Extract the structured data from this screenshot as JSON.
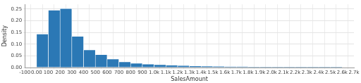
{
  "chart_data": {
    "type": "histogram",
    "x_label": "SalesAmount",
    "y_label": "Density",
    "bins": [
      0,
      100,
      200,
      300,
      400,
      500,
      600,
      700,
      800,
      900,
      1000,
      1100,
      1200,
      1300,
      1400,
      1500,
      1600,
      1700,
      1800,
      1900,
      2000,
      2100,
      2200,
      2300,
      2400,
      2500,
      2600
    ],
    "values": [
      0.143,
      0.245,
      0.252,
      0.133,
      0.075,
      0.055,
      0.036,
      0.024,
      0.018,
      0.014,
      0.012,
      0.01,
      0.008,
      0.007,
      0.006,
      0.005,
      0.004,
      0.004,
      0.003,
      0.003,
      0.002,
      0.002,
      0.002,
      0.002,
      0.001,
      0.001
    ],
    "color": "#2b78b5",
    "xlim": [
      -100,
      2700
    ],
    "xticks": [
      -100,
      {
        "value": 0,
        "label": "0.00"
      },
      100,
      200,
      300,
      400,
      500,
      600,
      700,
      800,
      900,
      {
        "value": 1000,
        "label": "1.0k"
      },
      {
        "value": 1100,
        "label": "1.1k"
      },
      {
        "value": 1200,
        "label": "1.2k"
      },
      {
        "value": 1300,
        "label": "1.3k"
      },
      {
        "value": 1400,
        "label": "1.4k"
      },
      {
        "value": 1500,
        "label": "1.5k"
      },
      {
        "value": 1600,
        "label": "1.6k"
      },
      {
        "value": 1700,
        "label": "1.7k"
      },
      {
        "value": 1800,
        "label": "1.8k"
      },
      {
        "value": 1900,
        "label": "1.9k"
      },
      {
        "value": 2000,
        "label": "2.0k"
      },
      {
        "value": 2100,
        "label": "2.1k"
      },
      {
        "value": 2200,
        "label": "2.2k"
      },
      {
        "value": 2300,
        "label": "2.3k"
      },
      {
        "value": 2400,
        "label": "2.4k"
      },
      {
        "value": 2500,
        "label": "2.5k"
      },
      {
        "value": 2600,
        "label": "2.6k"
      },
      {
        "value": 2700,
        "label": "2.7k"
      }
    ],
    "ylim": [
      0,
      0.27
    ],
    "yticks": [
      {
        "value": 0,
        "label": "0.00"
      },
      0.05,
      {
        "value": 0.1,
        "label": "0.10"
      },
      0.15,
      {
        "value": 0.2,
        "label": "0.20"
      },
      0.25
    ],
    "grid": true
  }
}
